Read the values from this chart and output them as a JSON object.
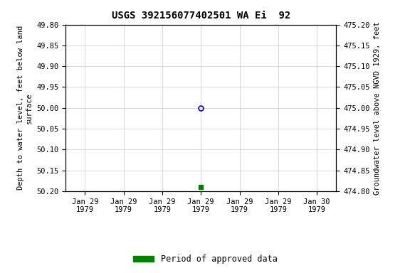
{
  "title": "USGS 392156077402501 WA Ei  92",
  "xlabel_dates": [
    "Jan 29\n1979",
    "Jan 29\n1979",
    "Jan 29\n1979",
    "Jan 29\n1979",
    "Jan 29\n1979",
    "Jan 29\n1979",
    "Jan 30\n1979"
  ],
  "ylabel_left": "Depth to water level, feet below land\nsurface",
  "ylabel_right": "Groundwater level above NGVD 1929, feet",
  "ylim_left": [
    49.8,
    50.2
  ],
  "ylim_right": [
    475.2,
    474.8
  ],
  "yticks_left": [
    49.8,
    49.85,
    49.9,
    49.95,
    50.0,
    50.05,
    50.1,
    50.15,
    50.2
  ],
  "yticks_right": [
    475.2,
    475.15,
    475.1,
    475.05,
    475.0,
    474.95,
    474.9,
    474.85,
    474.8
  ],
  "data_point_x": 3.5,
  "data_point_y_circle": 50.0,
  "data_point_y_square": 50.19,
  "circle_color": "#0000cc",
  "square_color": "#008000",
  "legend_label": "Period of approved data",
  "bg_color": "#ffffff",
  "grid_color": "#c8c8c8",
  "xlim": [
    0,
    7
  ]
}
